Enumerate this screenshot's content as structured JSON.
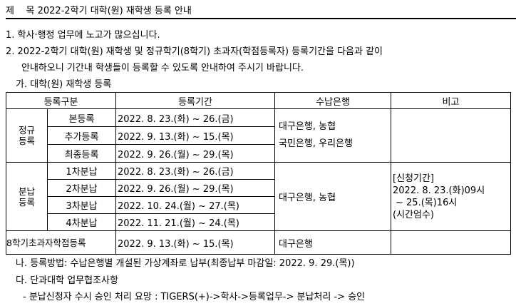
{
  "title": {
    "label": "제",
    "spacer": "목",
    "text": "2022-2학기 대학(원) 재학생 등록 안내"
  },
  "body": {
    "p1": "1. 학사·행정 업무에 노고가 많으십니다.",
    "p2a": "2. 2022-2학기 대학(원) 재학생 및 정규학기(8학기) 초과자(학점등록자) 등록기간을 다음과 같이",
    "p2b": "안내하오니 기간내 학생들이 등록할 수 있도록 안내하여 주시기 바랍니다.",
    "ga": "가. 대학(원) 재학생 등록",
    "na": "나. 등록방법: 수납은행별 개설된 가상계좌로 납부(최종납부 마감일: 2022. 9. 29.(목))",
    "da": "다. 단과대학 업무협조사항",
    "da_item": "- 분납신청자 수시 승인 처리 요망 : TIGERS(+)->학사->등록업무-> 분납처리 -> 승인"
  },
  "table": {
    "headers": [
      "등록구분",
      "등록기간",
      "수납은행",
      "비고"
    ],
    "regular": {
      "group": "정규등록",
      "rows": [
        {
          "type": "본등록",
          "period": "2022. 8. 23.(화) ~ 26.(금)"
        },
        {
          "type": "추가등록",
          "period": "2022. 9. 13.(화) ~ 15.(목)"
        },
        {
          "type": "최종등록",
          "period": "2022. 9. 26.(월) ~ 29.(목)"
        }
      ],
      "bank1": "대구은행, 농협",
      "bank2": "국민은행, 우리은행"
    },
    "install": {
      "group": "분납등록",
      "rows": [
        {
          "type": "1차분납",
          "period": "2022. 8. 23.(화) ~ 26.(금)"
        },
        {
          "type": "2차분납",
          "period": "2022. 9. 26.(월) ~ 29.(목)"
        },
        {
          "type": "3차분납",
          "period": "2022. 10. 24.(월) ~ 27.(목)"
        },
        {
          "type": "4차분납",
          "period": "2022. 11. 21.(월) ~ 24.(목)"
        }
      ],
      "bank": "대구은행, 농협",
      "note": [
        "[신청기간]",
        "2022. 8. 23.(화)09시",
        "~ 25.(목)16시",
        "(시간엄수)"
      ]
    },
    "extra": {
      "type": "8학기초과자학점등록",
      "period": "2022. 9. 13.(화) ~ 15.(목)",
      "bank": "대구은행"
    }
  }
}
